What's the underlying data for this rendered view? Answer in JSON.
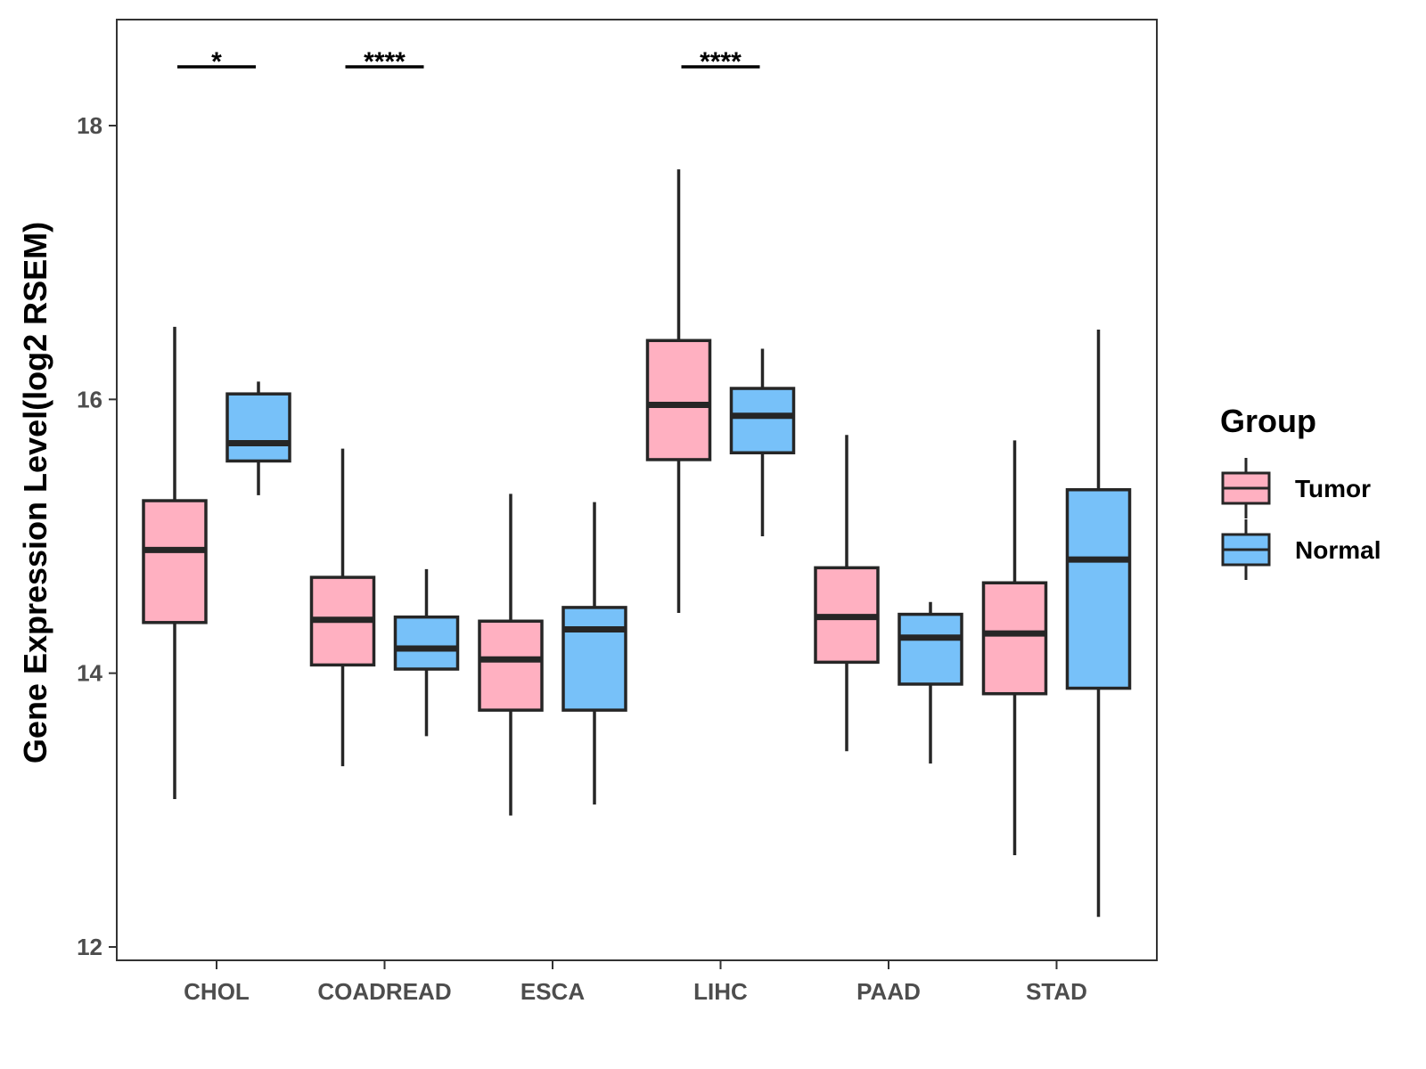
{
  "chart_data": {
    "type": "boxplot",
    "title": "",
    "xlabel": "",
    "ylabel": "Gene Expression Level(log2 RSEM)",
    "ylim": [
      11.9,
      18.77
    ],
    "yticks": [
      12,
      14,
      16,
      18
    ],
    "ytick_labels": [
      "12",
      "14",
      "16",
      "18"
    ],
    "categories": [
      "CHOL",
      "COADREAD",
      "ESCA",
      "LIHC",
      "PAAD",
      "STAD"
    ],
    "legend": {
      "title": "Group",
      "position": "right",
      "entries": [
        {
          "name": "Tumor",
          "color": "#ffb0c1"
        },
        {
          "name": "Normal",
          "color": "#77c1f9"
        }
      ]
    },
    "series": [
      {
        "name": "Tumor",
        "color": "#ffb0c1",
        "boxes": [
          {
            "category": "CHOL",
            "whisker_low": 13.08,
            "q1": 14.37,
            "median": 14.9,
            "q3": 15.26,
            "whisker_high": 16.53
          },
          {
            "category": "COADREAD",
            "whisker_low": 13.32,
            "q1": 14.06,
            "median": 14.39,
            "q3": 14.7,
            "whisker_high": 15.64
          },
          {
            "category": "ESCA",
            "whisker_low": 12.96,
            "q1": 13.73,
            "median": 14.1,
            "q3": 14.38,
            "whisker_high": 15.31
          },
          {
            "category": "LIHC",
            "whisker_low": 14.44,
            "q1": 15.56,
            "median": 15.96,
            "q3": 16.43,
            "whisker_high": 17.68
          },
          {
            "category": "PAAD",
            "whisker_low": 13.43,
            "q1": 14.08,
            "median": 14.41,
            "q3": 14.77,
            "whisker_high": 15.74
          },
          {
            "category": "STAD",
            "whisker_low": 12.67,
            "q1": 13.85,
            "median": 14.29,
            "q3": 14.66,
            "whisker_high": 15.7
          }
        ]
      },
      {
        "name": "Normal",
        "color": "#77c1f9",
        "boxes": [
          {
            "category": "CHOL",
            "whisker_low": 15.3,
            "q1": 15.55,
            "median": 15.68,
            "q3": 16.04,
            "whisker_high": 16.13
          },
          {
            "category": "COADREAD",
            "whisker_low": 13.54,
            "q1": 14.03,
            "median": 14.18,
            "q3": 14.41,
            "whisker_high": 14.76
          },
          {
            "category": "ESCA",
            "whisker_low": 13.04,
            "q1": 13.73,
            "median": 14.32,
            "q3": 14.48,
            "whisker_high": 15.25
          },
          {
            "category": "LIHC",
            "whisker_low": 15.0,
            "q1": 15.61,
            "median": 15.88,
            "q3": 16.08,
            "whisker_high": 16.37
          },
          {
            "category": "PAAD",
            "whisker_low": 13.34,
            "q1": 13.92,
            "median": 14.26,
            "q3": 14.43,
            "whisker_high": 14.52
          },
          {
            "category": "STAD",
            "whisker_low": 12.22,
            "q1": 13.89,
            "median": 14.83,
            "q3": 15.34,
            "whisker_high": 16.51
          }
        ]
      }
    ],
    "significance": [
      {
        "category": "CHOL",
        "label": "*"
      },
      {
        "category": "COADREAD",
        "label": "****"
      },
      {
        "category": "LIHC",
        "label": "****"
      }
    ]
  }
}
